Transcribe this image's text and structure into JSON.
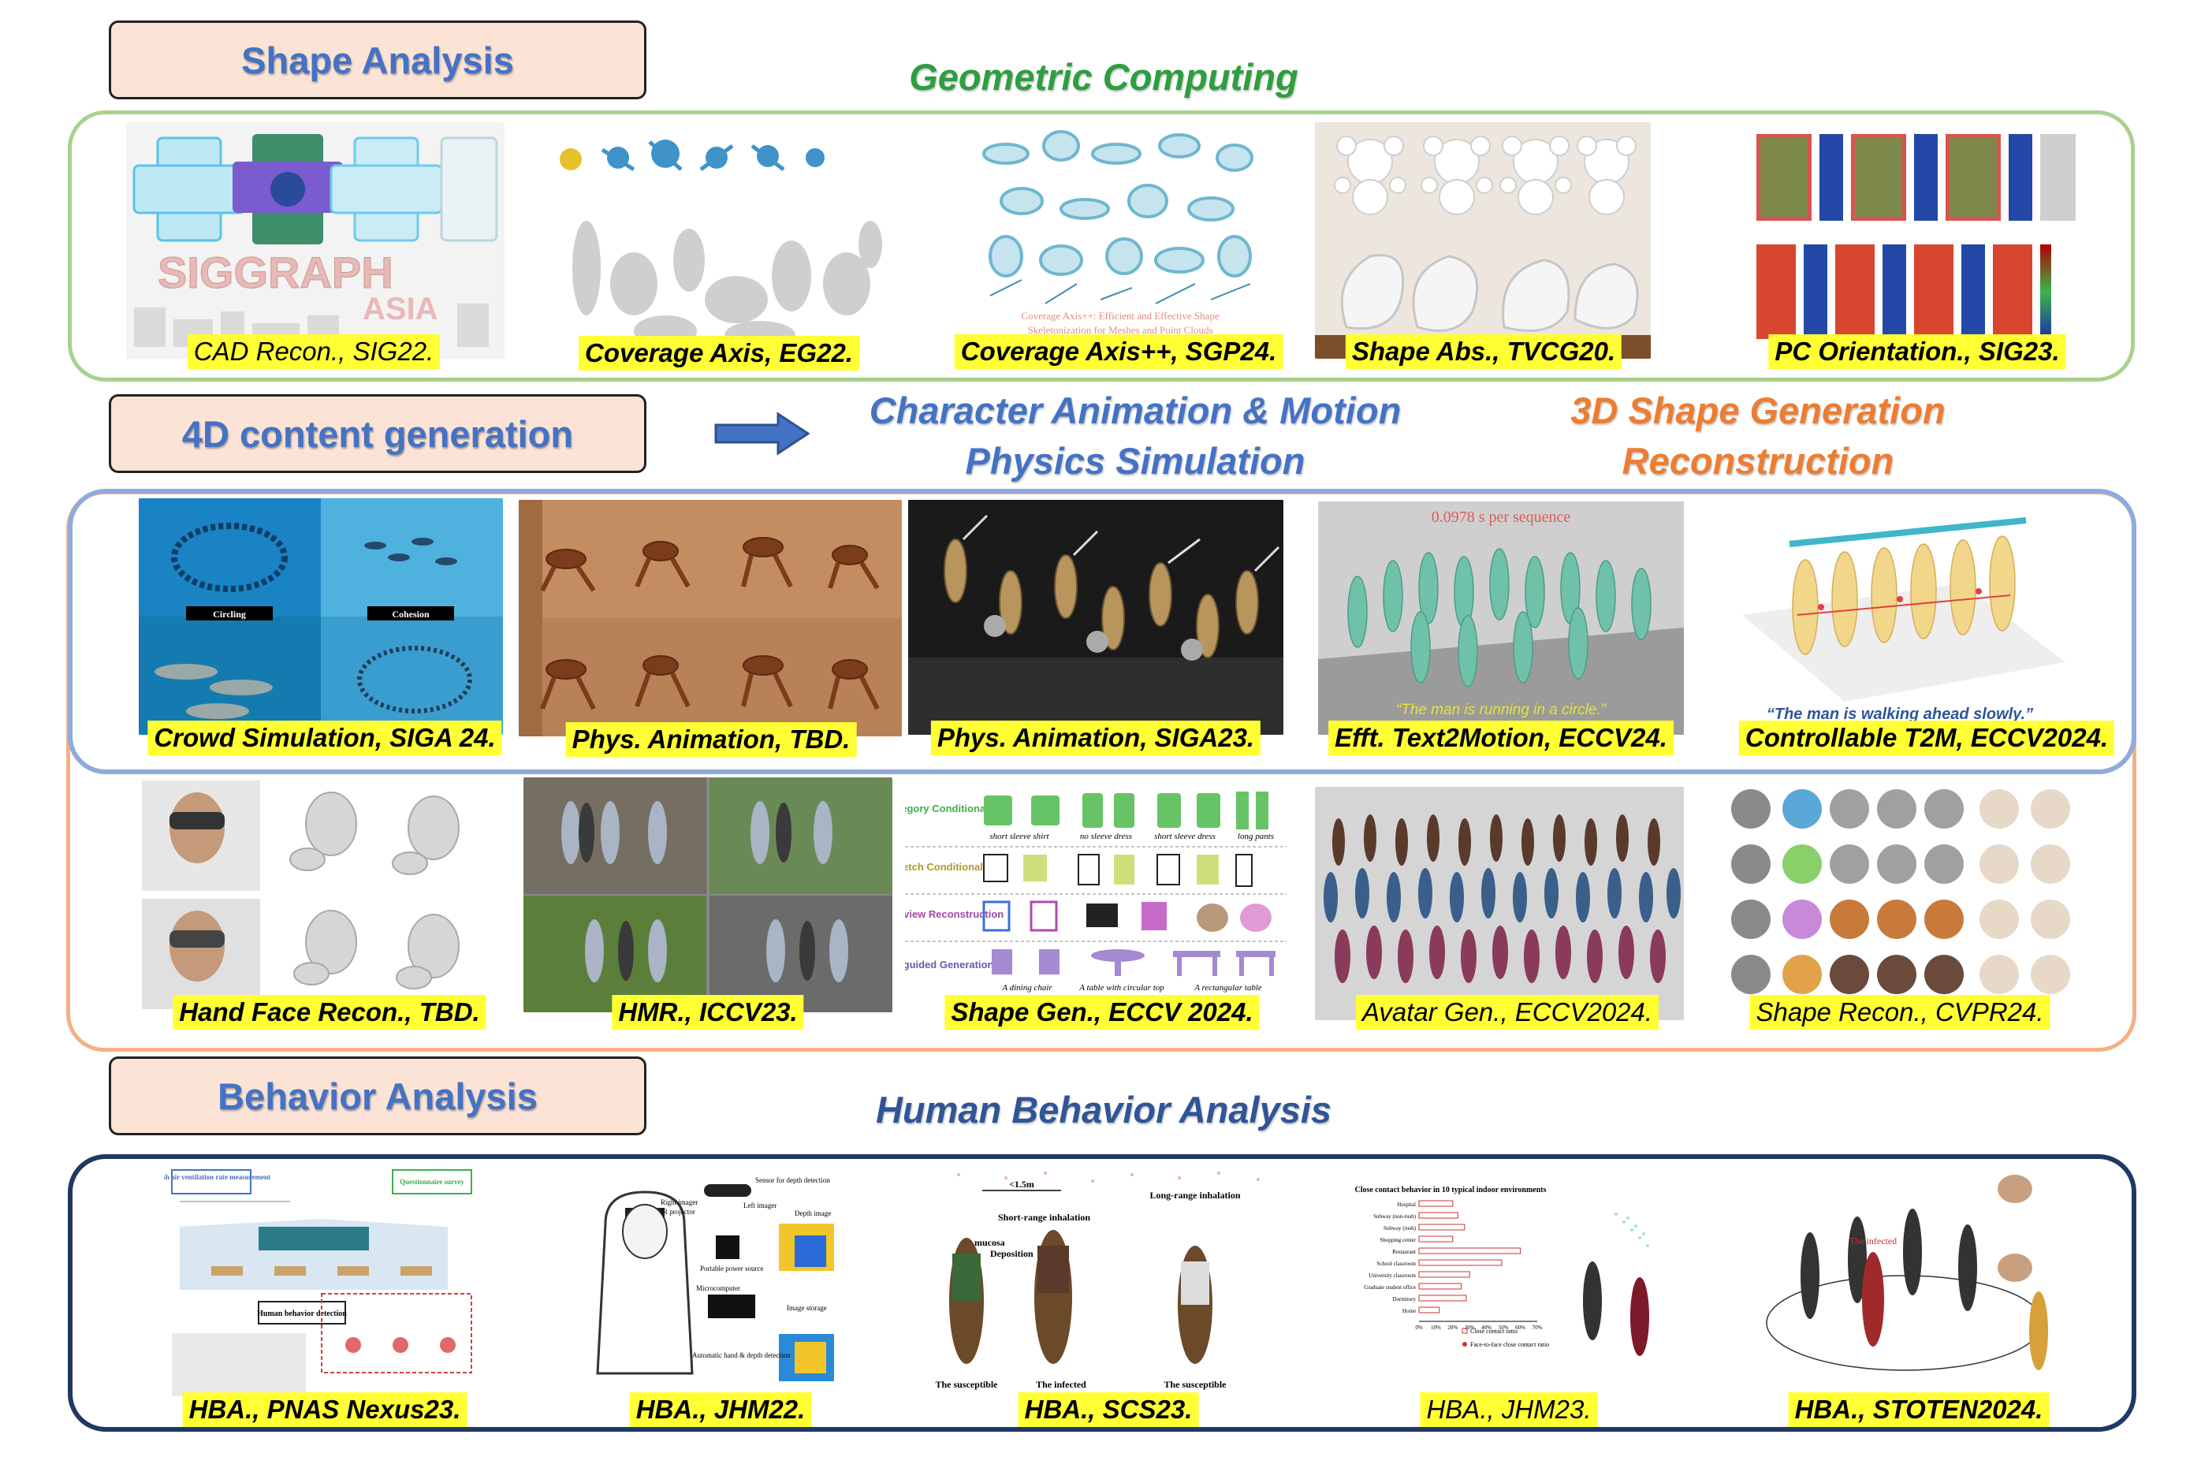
{
  "sections": {
    "shape_analysis": "Shape Analysis",
    "content_4d": "4D content generation",
    "behavior_analysis": "Behavior Analysis"
  },
  "headings": {
    "geometric": "Geometric Computing",
    "char_anim_1": "Character Animation & Motion",
    "char_anim_2": "Physics Simulation",
    "shape_gen_1": "3D Shape Generation",
    "shape_gen_2": "Reconstruction",
    "hba": "Human Behavior Analysis"
  },
  "colors": {
    "green_frame": "#a9d18e",
    "blue_frame": "#8faadc",
    "orange_frame": "#f4b183",
    "navy_frame": "#203864",
    "caption_bg": "#ffff33",
    "label_box": "#fbe3d6",
    "accent_blue": "#4472c4",
    "accent_green": "#2e9e3f",
    "accent_orange": "#ed7d31"
  },
  "row1": [
    {
      "caption": "CAD Recon., SIG22.",
      "bold": false,
      "inner": [
        "SIGGRAPH",
        "ASIA"
      ]
    },
    {
      "caption": "Coverage Axis, EG22.",
      "bold": true,
      "inner": []
    },
    {
      "caption": "Coverage Axis++, SGP24.",
      "bold": true,
      "inner": [
        "Coverage Axis++: Efficient and Effective Shape",
        "Skeletonization for Meshes and Point Clouds"
      ]
    },
    {
      "caption": "Shape Abs., TVCG20.",
      "bold": true,
      "inner": []
    },
    {
      "caption": "PC Orientation., SIG23.",
      "bold": true,
      "inner": []
    }
  ],
  "row2": [
    {
      "caption": "Crowd Simulation, SIGA 24.",
      "bold": true,
      "inner": [
        "Circling",
        "Cohesion"
      ]
    },
    {
      "caption": "Phys. Animation, TBD.",
      "bold": true,
      "inner": []
    },
    {
      "caption": "Phys. Animation, SIGA23.",
      "bold": true,
      "inner": []
    },
    {
      "caption": "Efft. Text2Motion, ECCV24.",
      "bold": true,
      "inner": [
        "0.0978 s per sequence",
        "“The man is running in a circle.”"
      ]
    },
    {
      "caption": "Controllable T2M, ECCV2024.",
      "bold": true,
      "inner": [
        "“The man is walking ahead slowly.”"
      ]
    }
  ],
  "row3": [
    {
      "caption": "Hand Face Recon., TBD.",
      "bold": true,
      "inner": []
    },
    {
      "caption": "HMR., ICCV23.",
      "bold": true,
      "inner": []
    },
    {
      "caption": "Shape Gen., ECCV 2024.",
      "bold": true,
      "inner": [
        "Category Conditional",
        "Sketch Conditional",
        "Single-view Reconstruction",
        "Text-guided Generation",
        "short sleeve shirt",
        "no sleeve dress",
        "short sleeve dress",
        "long pants",
        "A dining chair",
        "A table with circular top",
        "A rectangular table"
      ]
    },
    {
      "caption": "Avatar Gen., ECCV2024.",
      "bold": false,
      "inner": []
    },
    {
      "caption": "Shape Recon., CVPR24.",
      "bold": false,
      "inner": []
    }
  ],
  "row4": [
    {
      "caption": "HBA., PNAS Nexus23.",
      "bold": true,
      "inner": [
        "Fresh air ventilation rate measurement",
        "Questionnaire survey",
        "Human behavior detection"
      ]
    },
    {
      "caption": "HBA., JHM22.",
      "bold": true,
      "inner": [
        "Sensor for depth detection",
        "Depth image",
        "Right imager",
        "IR projector",
        "Left imager",
        "Portable power source",
        "Microcomputer",
        "Image storage",
        "Automatic hand & depth detection"
      ]
    },
    {
      "caption": "HBA., SCS23.",
      "bold": true,
      "inner": [
        "<1.5m",
        "Long-range inhalation",
        "Short-range inhalation",
        "mucosa",
        "Deposition",
        "The susceptible",
        "The infected",
        "The susceptible"
      ]
    },
    {
      "caption": "HBA., JHM23.",
      "bold": false,
      "inner": [
        "Close contact behavior in 10 typical indoor environments",
        "Close contact ratio",
        "Face-to-face close contact ratio"
      ]
    },
    {
      "caption": "HBA., STOTEN2024.",
      "bold": true,
      "inner": [
        "The infected"
      ]
    }
  ],
  "chart_bars": {
    "categories": [
      "Hospital",
      "Subway (non-rush)",
      "Subway (rush)",
      "Shopping center",
      "Restaurant",
      "School classroom",
      "University classroom",
      "Graduate student office",
      "Dormitory",
      "Home"
    ],
    "values": [
      0.2,
      0.23,
      0.27,
      0.2,
      0.6,
      0.49,
      0.3,
      0.25,
      0.28,
      0.12
    ],
    "xticks": [
      "0%",
      "10%",
      "20%",
      "30%",
      "40%",
      "50%",
      "60%",
      "70%"
    ]
  }
}
